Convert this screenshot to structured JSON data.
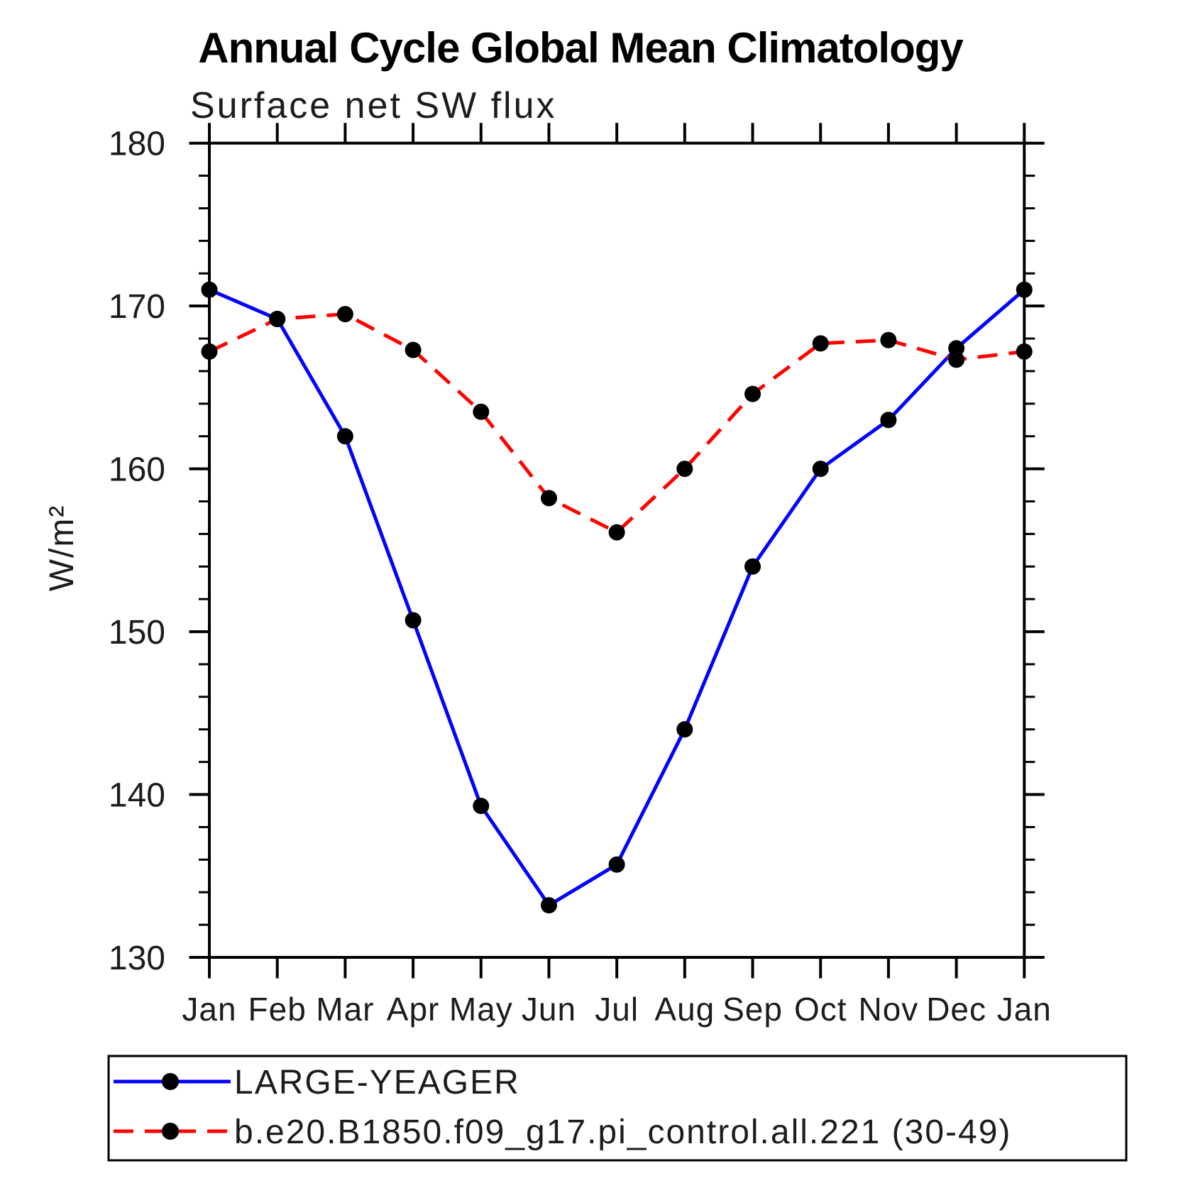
{
  "chart_data": {
    "type": "line",
    "title": "Annual Cycle Global Mean Climatology",
    "subtitle": "Surface net SW flux",
    "ylabel": "W/m²",
    "xlabel": "",
    "x_categories": [
      "Jan",
      "Feb",
      "Mar",
      "Apr",
      "May",
      "Jun",
      "Jul",
      "Aug",
      "Sep",
      "Oct",
      "Nov",
      "Dec",
      "Jan"
    ],
    "ylim": [
      130,
      180
    ],
    "y_major_ticks": [
      130,
      140,
      150,
      160,
      170,
      180
    ],
    "y_minor_step": 2,
    "grid": false,
    "legend_position": "bottom-left-box",
    "frame_color": "#000000",
    "marker_shape": "filled-circle",
    "series": [
      {
        "name": "LARGE-YEAGER",
        "color": "#0000ff",
        "line_style": "solid",
        "marker_color": "#000000",
        "values": [
          171.0,
          169.2,
          162.0,
          150.7,
          139.3,
          133.2,
          135.7,
          144.0,
          154.0,
          160.0,
          163.0,
          167.4,
          171.0
        ]
      },
      {
        "name": "b.e20.B1850.f09_g17.pi_control.all.221 (30-49)",
        "color": "#ff0000",
        "line_style": "dashed",
        "marker_color": "#000000",
        "values": [
          167.2,
          169.2,
          169.5,
          167.3,
          163.5,
          158.2,
          156.1,
          160.0,
          164.6,
          167.7,
          167.9,
          166.7,
          167.2
        ]
      }
    ]
  }
}
